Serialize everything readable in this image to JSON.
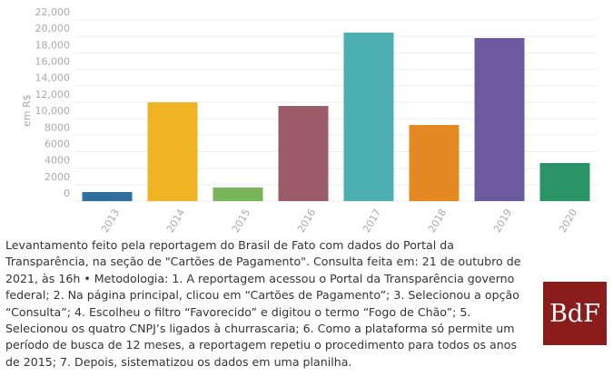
{
  "chart_data": {
    "type": "bar",
    "y_label": "em R$",
    "categories": [
      "2013",
      "2014",
      "2015",
      "2016",
      "2017",
      "2018",
      "2019",
      "2020"
    ],
    "values": [
      1100,
      12000,
      1650,
      11550,
      20460,
      9240,
      19800,
      4620
    ],
    "colors": [
      "#2e6f9e",
      "#f0b323",
      "#7ab55c",
      "#9c5b68",
      "#4db0b0",
      "#e58a22",
      "#6b5a9e",
      "#2a9467"
    ],
    "ylim": [
      0,
      22000
    ],
    "yticks": [
      0,
      2000,
      4000,
      6000,
      8000,
      {
        "value": 10000,
        "label": "10,000"
      },
      {
        "value": 12000,
        "label": "12,000"
      },
      {
        "value": 14000,
        "label": "14,000"
      },
      {
        "value": 16000,
        "label": "16,000"
      },
      {
        "value": 18000,
        "label": "18,000"
      },
      {
        "value": 20000,
        "label": "20,000"
      },
      {
        "value": 22000,
        "label": "22,000"
      }
    ],
    "grid": true
  },
  "caption": "Levantamento feito pela reportagem do Brasil de Fato com dados do Portal da Transparência, na seção de \"Cartões de Pagamento\". Consulta feita em: 21 de outubro de 2021, às 16h • Metodologia: 1. A reportagem acessou o Portal da Transparência governo federal; 2. Na página principal, clicou em “Cartões de Pagamento”; 3. Selecionou a opção “Consulta”; 4. Escolheu o filtro “Favorecido” e digitou o termo “Fogo de Chão”; 5. Selecionou os quatro CNPJ’s ligados à churrascaria; 6. Como a plataforma só permite um período de busca de 12 meses, a reportagem repetiu o procedimento para todos os anos de 2015; 7. Depois, sistematizou os dados em uma planilha.",
  "logo": "BdF"
}
